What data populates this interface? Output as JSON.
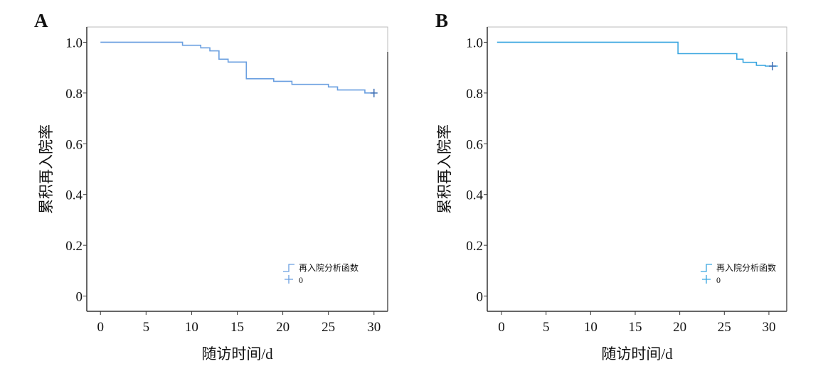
{
  "chart_data": [
    {
      "panel": "A",
      "type": "line",
      "step": true,
      "xlabel": "随访时间/d",
      "ylabel": "累积再入院率",
      "xticks": [
        "0",
        "5",
        "10",
        "15",
        "20",
        "25",
        "30"
      ],
      "yticks": [
        "0",
        "0.2",
        "0.4",
        "0.6",
        "0.8",
        "1.0"
      ],
      "xlim": [
        -1.5,
        31.5
      ],
      "ylim": [
        -0.06,
        1.06
      ],
      "color": "#6a9fe0",
      "legend": {
        "position": "bottom-right",
        "entries": [
          "再入院分析函数",
          "0"
        ]
      },
      "series": [
        {
          "name": "再入院分析函数",
          "x": [
            0,
            9,
            11,
            12,
            13,
            14,
            16,
            19,
            21,
            25,
            26,
            29,
            30
          ],
          "y": [
            1.0,
            0.988,
            0.978,
            0.966,
            0.933,
            0.922,
            0.856,
            0.846,
            0.834,
            0.824,
            0.812,
            0.8,
            0.8
          ],
          "censored": [
            {
              "x": 30,
              "y": 0.8
            }
          ]
        }
      ]
    },
    {
      "panel": "B",
      "type": "line",
      "step": true,
      "xlabel": "随访时间/d",
      "ylabel": "累积再入院率",
      "xticks": [
        "0",
        "5",
        "10",
        "15",
        "20",
        "25",
        "30"
      ],
      "yticks": [
        "0",
        "0.2",
        "0.4",
        "0.6",
        "0.8",
        "1.0"
      ],
      "xlim": [
        -1.6,
        32
      ],
      "ylim": [
        -0.06,
        1.06
      ],
      "color": "#3aa6e0",
      "legend": {
        "position": "bottom-right",
        "entries": [
          "再入院分析函数",
          "0"
        ]
      },
      "series": [
        {
          "name": "再入院分析函数",
          "x": [
            -0.5,
            19.8,
            26.4,
            27.1,
            28.6,
            29.6,
            31
          ],
          "y": [
            1.0,
            0.955,
            0.933,
            0.921,
            0.909,
            0.906,
            0.906
          ],
          "censored": [
            {
              "x": 30.4,
              "y": 0.906
            }
          ]
        }
      ]
    }
  ]
}
